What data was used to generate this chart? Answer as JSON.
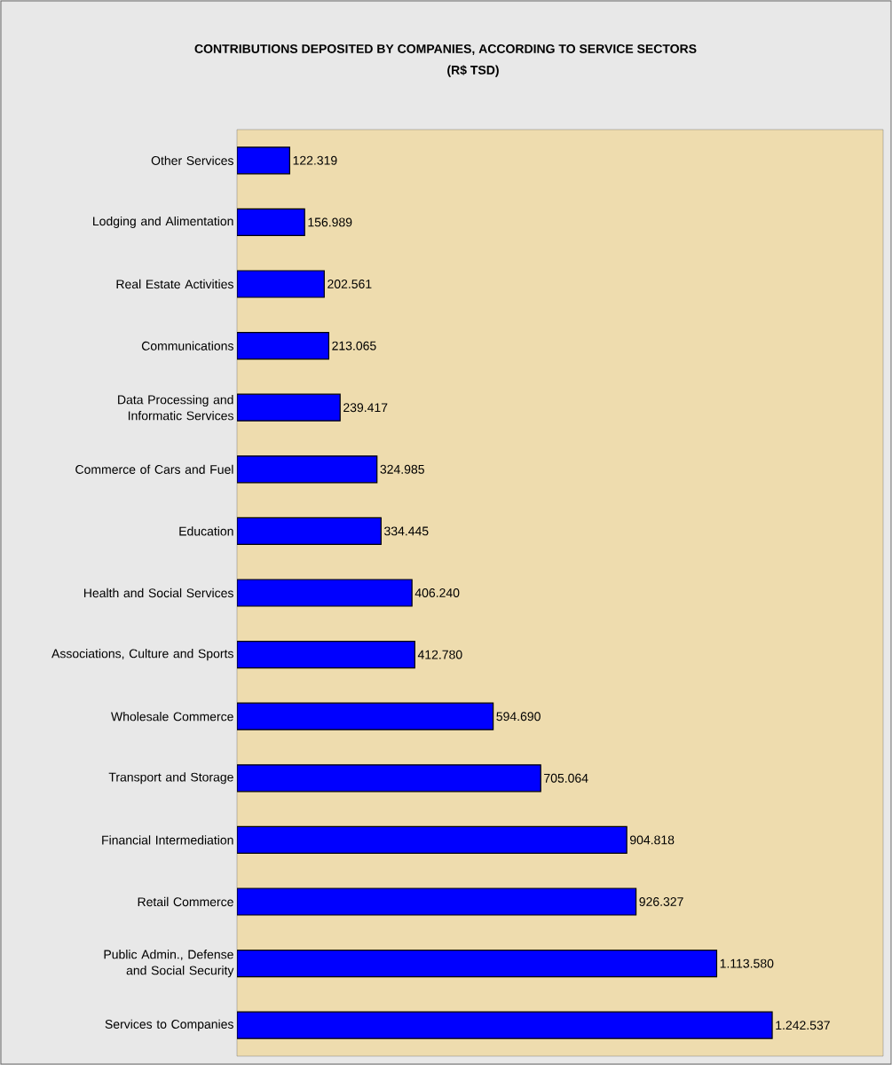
{
  "chart_data": {
    "type": "bar",
    "orientation": "horizontal",
    "title": "CONTRIBUTIONS DEPOSITED BY COMPANIES, ACCORDING TO SERVICE SECTORS",
    "subtitle": "(R$ TSD)",
    "categories": [
      "Other Services",
      "Lodging and Alimentation",
      "Real Estate Activities",
      "Communications",
      "Data Processing and Informatic Services",
      "Commerce of Cars and Fuel",
      "Education",
      "Health and Social Services",
      "Associations, Culture and Sports",
      "Wholesale Commerce",
      "Transport and Storage",
      "Financial Intermediation",
      "Retail Commerce",
      "Public Admin., Defense and Social Security",
      "Services to Companies"
    ],
    "values": [
      122319,
      156989,
      202561,
      213065,
      239417,
      324985,
      334445,
      406240,
      412780,
      594690,
      705064,
      904818,
      926327,
      1113580,
      1242537
    ],
    "value_labels": [
      "122.319",
      "156.989",
      "202.561",
      "213.065",
      "239.417",
      "324.985",
      "334.445",
      "406.240",
      "412.780",
      "594.690",
      "705.064",
      "904.818",
      "926.327",
      "1.113.580",
      "1.242.537"
    ],
    "color": "#0000ff",
    "xlim": [
      0,
      1500000
    ],
    "tick_labels": "y"
  }
}
